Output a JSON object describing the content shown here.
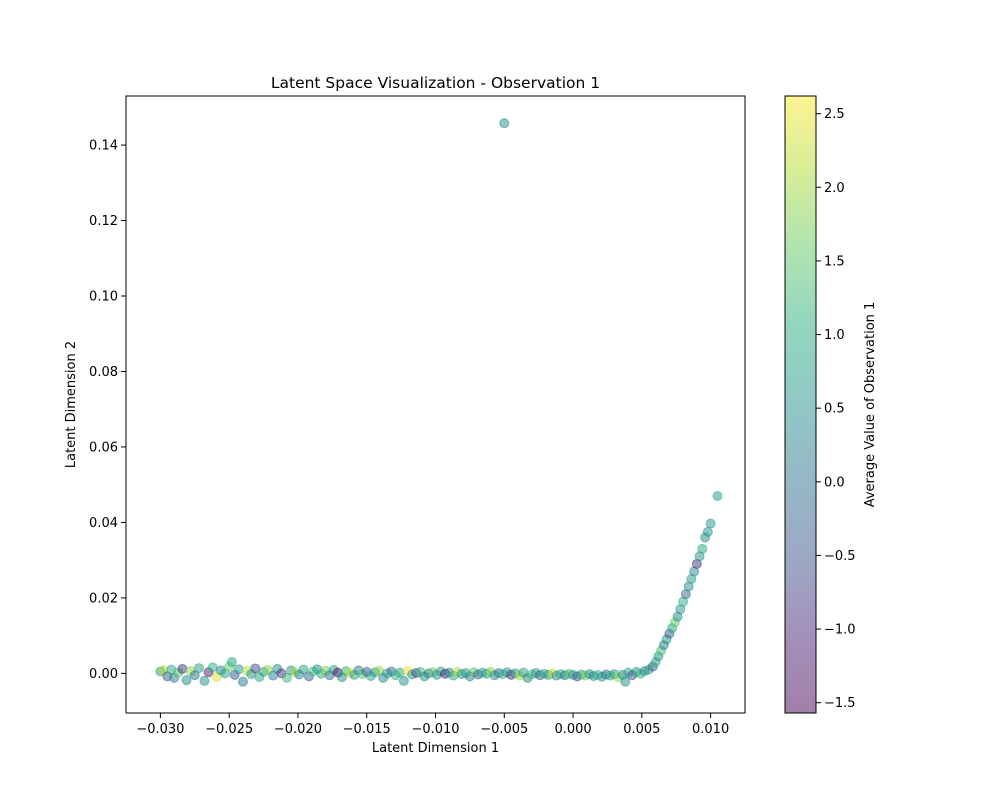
{
  "chart_data": {
    "type": "scatter",
    "title": "Latent Space Visualization - Observation 1",
    "xlabel": "Latent Dimension 1",
    "ylabel": "Latent Dimension 2",
    "xlim": [
      -0.0325,
      0.0125
    ],
    "ylim": [
      -0.0105,
      0.153
    ],
    "xticks": [
      -0.03,
      -0.025,
      -0.02,
      -0.015,
      -0.01,
      -0.005,
      0.0,
      0.005,
      0.01
    ],
    "xtick_labels": [
      "−0.030",
      "−0.025",
      "−0.020",
      "−0.015",
      "−0.010",
      "−0.005",
      "0.000",
      "0.005",
      "0.010"
    ],
    "yticks": [
      0.0,
      0.02,
      0.04,
      0.06,
      0.08,
      0.1,
      0.12,
      0.14
    ],
    "ytick_labels": [
      "0.00",
      "0.02",
      "0.04",
      "0.06",
      "0.08",
      "0.10",
      "0.12",
      "0.14"
    ],
    "grid": false,
    "point_alpha": 0.5,
    "colorbar": {
      "label": "Average Value of Observation 1",
      "colormap": "viridis",
      "range": [
        -1.57,
        2.62
      ],
      "ticks": [
        -1.5,
        -1.0,
        -0.5,
        0.0,
        0.5,
        1.0,
        1.5,
        2.0,
        2.5
      ],
      "tick_labels": [
        "−1.5",
        "−1.0",
        "−0.5",
        "0.0",
        "0.5",
        "1.0",
        "1.5",
        "2.0",
        "2.5"
      ]
    },
    "points": [
      {
        "x": -0.03,
        "y": 0.0005,
        "c": 0.6
      },
      {
        "x": -0.0298,
        "y": 0.0008,
        "c": 2.1
      },
      {
        "x": -0.0295,
        "y": -0.0008,
        "c": -0.3
      },
      {
        "x": -0.0292,
        "y": 0.001,
        "c": 0.9
      },
      {
        "x": -0.029,
        "y": -0.0012,
        "c": 0.2
      },
      {
        "x": -0.0287,
        "y": 0.0002,
        "c": 1.4
      },
      {
        "x": -0.0284,
        "y": 0.0012,
        "c": -0.8
      },
      {
        "x": -0.0281,
        "y": -0.0018,
        "c": 0.4
      },
      {
        "x": -0.0278,
        "y": 0.0006,
        "c": 1.9
      },
      {
        "x": -0.0275,
        "y": -0.0005,
        "c": 0.0
      },
      {
        "x": -0.0272,
        "y": 0.0014,
        "c": 0.7
      },
      {
        "x": -0.0268,
        "y": -0.002,
        "c": 0.5
      },
      {
        "x": -0.0265,
        "y": 0.0003,
        "c": -1.1
      },
      {
        "x": -0.0262,
        "y": 0.0016,
        "c": 1.1
      },
      {
        "x": -0.0259,
        "y": -0.0009,
        "c": 2.4
      },
      {
        "x": -0.0256,
        "y": 0.0008,
        "c": 0.3
      },
      {
        "x": -0.0253,
        "y": 0.0,
        "c": 0.8
      },
      {
        "x": -0.025,
        "y": 0.0018,
        "c": 1.6
      },
      {
        "x": -0.0248,
        "y": 0.003,
        "c": 0.9
      },
      {
        "x": -0.0246,
        "y": -0.0004,
        "c": -0.4
      },
      {
        "x": -0.0243,
        "y": 0.0011,
        "c": 0.6
      },
      {
        "x": -0.024,
        "y": -0.0022,
        "c": 0.1
      },
      {
        "x": -0.0237,
        "y": 0.0007,
        "c": 2.2
      },
      {
        "x": -0.0234,
        "y": -0.0002,
        "c": 0.5
      },
      {
        "x": -0.0231,
        "y": 0.0013,
        "c": -0.6
      },
      {
        "x": -0.0228,
        "y": -0.001,
        "c": 1.0
      },
      {
        "x": -0.0225,
        "y": 0.0004,
        "c": 0.7
      },
      {
        "x": -0.0222,
        "y": 0.0009,
        "c": 1.8
      },
      {
        "x": -0.0218,
        "y": -0.0006,
        "c": 0.2
      },
      {
        "x": -0.0215,
        "y": 0.0012,
        "c": 0.4
      },
      {
        "x": -0.0212,
        "y": 0.0,
        "c": -0.9
      },
      {
        "x": -0.0208,
        "y": -0.0012,
        "c": 1.2
      },
      {
        "x": -0.0205,
        "y": 0.0008,
        "c": 0.6
      },
      {
        "x": -0.0202,
        "y": 0.0003,
        "c": 2.0
      },
      {
        "x": -0.0199,
        "y": -0.0003,
        "c": 0.3
      },
      {
        "x": -0.0196,
        "y": 0.001,
        "c": 0.8
      },
      {
        "x": -0.0192,
        "y": -0.0008,
        "c": -0.2
      },
      {
        "x": -0.0189,
        "y": 0.0005,
        "c": 1.3
      },
      {
        "x": -0.0186,
        "y": 0.0011,
        "c": 0.5
      },
      {
        "x": -0.0183,
        "y": -0.0001,
        "c": 0.9
      },
      {
        "x": -0.018,
        "y": 0.0007,
        "c": 1.7
      },
      {
        "x": -0.0177,
        "y": -0.0005,
        "c": 0.0
      },
      {
        "x": -0.0174,
        "y": 0.0009,
        "c": 0.6
      },
      {
        "x": -0.0171,
        "y": 0.0002,
        "c": -1.5
      },
      {
        "x": -0.0168,
        "y": -0.001,
        "c": 0.4
      },
      {
        "x": -0.0165,
        "y": 0.0006,
        "c": 1.0
      },
      {
        "x": -0.0162,
        "y": 0.0001,
        "c": 2.3
      },
      {
        "x": -0.0159,
        "y": -0.0004,
        "c": 0.7
      },
      {
        "x": -0.0156,
        "y": 0.0008,
        "c": 0.2
      },
      {
        "x": -0.0153,
        "y": -0.0002,
        "c": 1.4
      },
      {
        "x": -0.015,
        "y": 0.0004,
        "c": -0.5
      },
      {
        "x": -0.0147,
        "y": -0.0007,
        "c": 0.8
      },
      {
        "x": -0.0144,
        "y": 0.0003,
        "c": 0.5
      },
      {
        "x": -0.0141,
        "y": 0.0007,
        "c": 1.9
      },
      {
        "x": -0.0138,
        "y": -0.0012,
        "c": 0.3
      },
      {
        "x": -0.0135,
        "y": 0.0,
        "c": 0.6
      },
      {
        "x": -0.0132,
        "y": 0.0005,
        "c": -0.1
      },
      {
        "x": -0.0129,
        "y": -0.0005,
        "c": 1.1
      },
      {
        "x": -0.0126,
        "y": 0.0002,
        "c": 0.9
      },
      {
        "x": -0.0123,
        "y": -0.002,
        "c": 0.4
      },
      {
        "x": -0.012,
        "y": 0.0006,
        "c": 2.5
      },
      {
        "x": -0.0117,
        "y": -0.0003,
        "c": 0.7
      },
      {
        "x": -0.0114,
        "y": 0.0001,
        "c": -0.7
      },
      {
        "x": -0.0111,
        "y": 0.0004,
        "c": 1.2
      },
      {
        "x": -0.0108,
        "y": -0.0008,
        "c": 0.5
      },
      {
        "x": -0.0105,
        "y": 0.0,
        "c": 0.1
      },
      {
        "x": -0.0102,
        "y": 0.0003,
        "c": 1.6
      },
      {
        "x": -0.0099,
        "y": -0.0004,
        "c": 0.6
      },
      {
        "x": -0.0096,
        "y": 0.0005,
        "c": 0.8
      },
      {
        "x": -0.0093,
        "y": -0.0001,
        "c": -1.2
      },
      {
        "x": -0.009,
        "y": 0.0002,
        "c": 0.3
      },
      {
        "x": -0.0087,
        "y": -0.0006,
        "c": 1.0
      },
      {
        "x": -0.0084,
        "y": 0.0004,
        "c": 2.1
      },
      {
        "x": -0.0081,
        "y": -0.0002,
        "c": 0.5
      },
      {
        "x": -0.0078,
        "y": 0.0001,
        "c": 0.7
      },
      {
        "x": -0.0075,
        "y": -0.0008,
        "c": 0.2
      },
      {
        "x": -0.0072,
        "y": 0.0003,
        "c": 1.5
      },
      {
        "x": -0.0069,
        "y": -0.0003,
        "c": -0.4
      },
      {
        "x": -0.0066,
        "y": 0.0002,
        "c": 0.9
      },
      {
        "x": -0.0063,
        "y": -0.0001,
        "c": 0.6
      },
      {
        "x": -0.006,
        "y": 0.0004,
        "c": 1.8
      },
      {
        "x": -0.0057,
        "y": -0.0005,
        "c": 0.4
      },
      {
        "x": -0.0054,
        "y": 0.0001,
        "c": 0.0
      },
      {
        "x": -0.0051,
        "y": -0.0002,
        "c": 1.1
      },
      {
        "x": -0.0048,
        "y": 0.0003,
        "c": 0.7
      },
      {
        "x": -0.0045,
        "y": -0.0004,
        "c": -0.9
      },
      {
        "x": -0.0042,
        "y": 0.0,
        "c": 0.5
      },
      {
        "x": -0.0039,
        "y": -0.0006,
        "c": 2.0
      },
      {
        "x": -0.0036,
        "y": 0.0002,
        "c": 0.8
      },
      {
        "x": -0.0033,
        "y": -0.0012,
        "c": 0.3
      },
      {
        "x": -0.003,
        "y": -0.0003,
        "c": 1.3
      },
      {
        "x": -0.0027,
        "y": 0.0001,
        "c": 0.6
      },
      {
        "x": -0.0024,
        "y": -0.0005,
        "c": -0.3
      },
      {
        "x": -0.0021,
        "y": -0.0001,
        "c": 1.0
      },
      {
        "x": -0.0018,
        "y": -0.0004,
        "c": 0.5
      },
      {
        "x": -0.0015,
        "y": 0.0,
        "c": 2.2
      },
      {
        "x": -0.0012,
        "y": -0.0006,
        "c": 0.4
      },
      {
        "x": -0.0009,
        "y": -0.0002,
        "c": 0.9
      },
      {
        "x": -0.0006,
        "y": -0.0005,
        "c": 0.1
      },
      {
        "x": -0.0003,
        "y": -0.0001,
        "c": 1.4
      },
      {
        "x": 0.0,
        "y": -0.0004,
        "c": 0.6
      },
      {
        "x": 0.0003,
        "y": -0.0008,
        "c": -0.6
      },
      {
        "x": 0.0006,
        "y": -0.0003,
        "c": 0.8
      },
      {
        "x": 0.0009,
        "y": -0.0006,
        "c": 1.7
      },
      {
        "x": 0.0012,
        "y": -0.0002,
        "c": 0.5
      },
      {
        "x": 0.0015,
        "y": -0.0007,
        "c": 0.3
      },
      {
        "x": 0.0018,
        "y": -0.0004,
        "c": 1.1
      },
      {
        "x": 0.0021,
        "y": -0.0009,
        "c": 0.7
      },
      {
        "x": 0.0024,
        "y": -0.0003,
        "c": -0.2
      },
      {
        "x": 0.0027,
        "y": -0.0006,
        "c": 0.9
      },
      {
        "x": 0.003,
        "y": -0.0002,
        "c": 0.6
      },
      {
        "x": 0.0033,
        "y": -0.001,
        "c": 1.9
      },
      {
        "x": 0.0036,
        "y": -0.0004,
        "c": 0.4
      },
      {
        "x": 0.0038,
        "y": -0.0022,
        "c": 0.5
      },
      {
        "x": 0.004,
        "y": 0.0002,
        "c": 0.8
      },
      {
        "x": 0.0043,
        "y": -0.0005,
        "c": -0.5
      },
      {
        "x": 0.0046,
        "y": 0.0004,
        "c": 0.6
      },
      {
        "x": 0.0049,
        "y": -0.0001,
        "c": 1.2
      },
      {
        "x": 0.0052,
        "y": 0.0006,
        "c": 0.3
      },
      {
        "x": 0.0055,
        "y": 0.001,
        "c": 0.7
      },
      {
        "x": 0.0058,
        "y": 0.0018,
        "c": -0.3
      },
      {
        "x": 0.006,
        "y": 0.003,
        "c": 0.9
      },
      {
        "x": 0.0062,
        "y": 0.0045,
        "c": 0.5
      },
      {
        "x": 0.0064,
        "y": 0.006,
        "c": 1.4
      },
      {
        "x": 0.0066,
        "y": 0.0075,
        "c": 0.2
      },
      {
        "x": 0.0068,
        "y": 0.009,
        "c": 0.7
      },
      {
        "x": 0.007,
        "y": 0.0105,
        "c": -0.4
      },
      {
        "x": 0.0072,
        "y": 0.012,
        "c": 0.8
      },
      {
        "x": 0.0074,
        "y": 0.0135,
        "c": 1.6
      },
      {
        "x": 0.0076,
        "y": 0.015,
        "c": 0.4
      },
      {
        "x": 0.0078,
        "y": 0.017,
        "c": 0.6
      },
      {
        "x": 0.008,
        "y": 0.019,
        "c": 1.0
      },
      {
        "x": 0.0082,
        "y": 0.021,
        "c": -0.2
      },
      {
        "x": 0.0084,
        "y": 0.023,
        "c": 0.5
      },
      {
        "x": 0.0086,
        "y": 0.025,
        "c": 0.7
      },
      {
        "x": 0.0088,
        "y": 0.027,
        "c": 0.3
      },
      {
        "x": 0.009,
        "y": 0.029,
        "c": -0.8
      },
      {
        "x": 0.0092,
        "y": 0.031,
        "c": 0.6
      },
      {
        "x": 0.0094,
        "y": 0.033,
        "c": 0.9
      },
      {
        "x": 0.0096,
        "y": 0.036,
        "c": 0.4
      },
      {
        "x": 0.0098,
        "y": 0.0375,
        "c": 0.5
      },
      {
        "x": 0.01,
        "y": 0.0397,
        "c": 0.6
      },
      {
        "x": 0.0105,
        "y": 0.047,
        "c": 0.7
      },
      {
        "x": -0.005,
        "y": 0.1458,
        "c": 0.4
      }
    ]
  }
}
